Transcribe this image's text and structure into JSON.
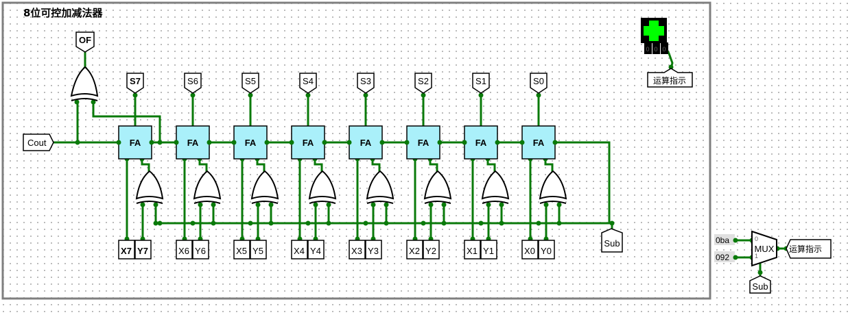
{
  "title": "8位可控加减法器",
  "adders": [
    {
      "label": "FA",
      "sum": "S7",
      "x": "X7",
      "y": "Y7",
      "bold": true
    },
    {
      "label": "FA",
      "sum": "S6",
      "x": "X6",
      "y": "Y6",
      "bold": false
    },
    {
      "label": "FA",
      "sum": "S5",
      "x": "X5",
      "y": "Y5",
      "bold": false
    },
    {
      "label": "FA",
      "sum": "S4",
      "x": "X4",
      "y": "Y4",
      "bold": false
    },
    {
      "label": "FA",
      "sum": "S3",
      "x": "X3",
      "y": "Y3",
      "bold": false
    },
    {
      "label": "FA",
      "sum": "S2",
      "x": "X2",
      "y": "Y2",
      "bold": false
    },
    {
      "label": "FA",
      "sum": "S1",
      "x": "X1",
      "y": "Y1",
      "bold": false
    },
    {
      "label": "FA",
      "sum": "S0",
      "x": "X0",
      "y": "Y0",
      "bold": false
    }
  ],
  "overflow_label": "OF",
  "carry_out_label": "Cout",
  "sub_label": "Sub",
  "hex_display": {
    "digits": [
      "0",
      "0",
      "0"
    ],
    "label": "运算指示"
  },
  "mux": {
    "label": "MUX",
    "input0_value": "0ba",
    "input1_value": "092",
    "input0_sel": "0",
    "input1_sel": "1",
    "output_label": "运算指示",
    "select_label": "Sub"
  },
  "colors": {
    "wire": "#0a7a0a",
    "adder_fill": "#aaf0fa",
    "hex_segment": "#00ff00",
    "frame": "#808080"
  }
}
